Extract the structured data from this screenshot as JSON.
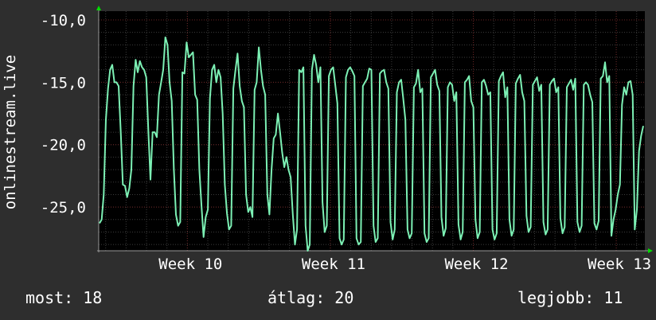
{
  "chart_data": {
    "type": "line",
    "ylabel": "onlinestream.live",
    "y_ticks": [
      "-10,0",
      "-15,0",
      "-20,0",
      "-25,0"
    ],
    "y_tick_values": [
      -10,
      -15,
      -20,
      -25
    ],
    "x_ticks": [
      "Week 10",
      "Week 11",
      "Week 12",
      "Week 13"
    ],
    "x_tick_values": [
      10,
      11,
      12,
      13
    ],
    "ylim": [
      -28.5,
      -9.3
    ],
    "xlim": [
      9.38,
      13.2
    ],
    "grid": true,
    "colors": {
      "background": "#2e2e2e",
      "plot": "#000000",
      "grid_major": "#6b2424",
      "grid_minor": "#3c3c3c",
      "line": "#7cf0b4",
      "axis_arrow": "#00dd00"
    },
    "series": [
      {
        "values": [
          -26.3,
          -26.0,
          -24.0,
          -18.0,
          -15.5,
          -14.0,
          -13.6,
          -15.0,
          -15.0,
          -15.3,
          -19.0,
          -23.2,
          -23.3,
          -24.2,
          -23.5,
          -22.0,
          -15.3,
          -13.2,
          -14.2,
          -13.3,
          -13.8,
          -14.0,
          -14.6,
          -19.0,
          -22.8,
          -19.0,
          -19.0,
          -19.4,
          -16.0,
          -15.0,
          -14.0,
          -11.4,
          -12.0,
          -15.0,
          -16.5,
          -22.0,
          -25.6,
          -26.5,
          -26.2,
          -14.2,
          -14.3,
          -11.8,
          -13.0,
          -12.8,
          -12.6,
          -16.0,
          -16.4,
          -22.0,
          -24.9,
          -27.4,
          -25.8,
          -25.2,
          -16.3,
          -14.0,
          -13.6,
          -15.0,
          -14.0,
          -14.6,
          -17.5,
          -23.2,
          -25.5,
          -26.8,
          -26.5,
          -15.5,
          -14.0,
          -12.7,
          -15.3,
          -16.5,
          -17.0,
          -24.0,
          -25.4,
          -25.0,
          -25.8,
          -15.6,
          -15.0,
          -12.2,
          -14.0,
          -15.3,
          -16.0,
          -24.0,
          -25.6,
          -22.0,
          -19.5,
          -19.2,
          -17.5,
          -19.0,
          -20.6,
          -21.8,
          -21.0,
          -22.0,
          -22.6,
          -25.6,
          -28.0,
          -26.8,
          -14.0,
          -14.2,
          -13.8,
          -26.5,
          -28.5,
          -28.0,
          -14.0,
          -12.8,
          -13.6,
          -15.0,
          -13.8,
          -24.6,
          -27.0,
          -26.5,
          -14.5,
          -14.0,
          -13.8,
          -15.2,
          -16.7,
          -27.5,
          -28.0,
          -27.6,
          -14.6,
          -14.0,
          -13.8,
          -14.1,
          -14.5,
          -27.5,
          -28.0,
          -27.8,
          -15.3,
          -15.0,
          -14.7,
          -13.9,
          -14.0,
          -26.5,
          -27.8,
          -27.5,
          -14.3,
          -14.1,
          -14.0,
          -15.0,
          -15.5,
          -26.2,
          -27.6,
          -26.8,
          -15.8,
          -15.0,
          -14.8,
          -16.3,
          -18.0,
          -26.8,
          -27.5,
          -27.1,
          -15.4,
          -15.1,
          -14.0,
          -15.8,
          -15.5,
          -27.1,
          -27.8,
          -27.5,
          -14.6,
          -14.3,
          -14.0,
          -15.2,
          -15.7,
          -25.8,
          -27.3,
          -26.7,
          -15.4,
          -15.0,
          -15.2,
          -16.5,
          -15.8,
          -26.4,
          -27.6,
          -27.0,
          -15.0,
          -14.8,
          -14.5,
          -16.5,
          -17.0,
          -26.0,
          -27.5,
          -27.0,
          -15.0,
          -14.8,
          -15.3,
          -16.0,
          -15.8,
          -26.8,
          -27.6,
          -27.1,
          -14.9,
          -14.5,
          -14.2,
          -16.2,
          -15.4,
          -26.0,
          -27.3,
          -26.8,
          -15.1,
          -14.7,
          -14.4,
          -15.8,
          -16.5,
          -25.7,
          -27.0,
          -26.6,
          -15.2,
          -14.9,
          -14.6,
          -15.7,
          -15.2,
          -26.2,
          -27.2,
          -26.8,
          -15.2,
          -14.9,
          -14.7,
          -15.8,
          -15.4,
          -25.9,
          -27.1,
          -26.6,
          -15.4,
          -15.1,
          -14.8,
          -15.6,
          -14.7,
          -26.2,
          -27.0,
          -26.5,
          -15.2,
          -15.0,
          -15.2,
          -16.0,
          -16.6,
          -26.3,
          -26.8,
          -26.1,
          -14.7,
          -14.5,
          -13.4,
          -15.0,
          -14.5,
          -27.3,
          -26.0,
          -25.2,
          -24.0,
          -23.2,
          -16.8,
          -15.4,
          -16.0,
          -15.0,
          -14.9,
          -16.0,
          -26.8,
          -25.2,
          -20.5,
          -19.3,
          -18.5
        ]
      }
    ]
  },
  "stats": {
    "current_label": "most:",
    "current_value": "18",
    "average_label": "átlag:",
    "average_value": "20",
    "best_label": "legjobb:",
    "best_value": "11"
  }
}
